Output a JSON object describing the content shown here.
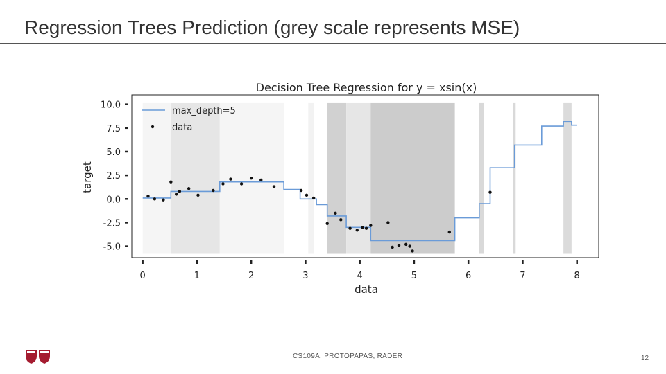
{
  "slide": {
    "title": "Regression Trees Prediction (grey scale represents MSE)",
    "footer_credit": "CS109A, PROTOPAPAS, RADER",
    "page_number": "12"
  },
  "chart_data": {
    "type": "line",
    "title": "Decision Tree Regression for y = xsin(x)",
    "xlabel": "data",
    "ylabel": "target",
    "xlim": [
      -0.2,
      8.4
    ],
    "ylim": [
      -6.2,
      11.0
    ],
    "xticks": [
      "0",
      "1",
      "2",
      "3",
      "4",
      "5",
      "6",
      "7",
      "8"
    ],
    "yticks": [
      "10.0",
      "7.5",
      "5.0",
      "2.5",
      "0.0",
      "-2.5",
      "-5.0"
    ],
    "legend": {
      "position": "top-left",
      "entries": [
        "max_depth=5",
        "data"
      ]
    },
    "colors": {
      "prediction": "#6a9bd8",
      "data": "#111111"
    },
    "mse_regions": [
      {
        "x0": 0.0,
        "x1": 0.52,
        "shade": 0.96
      },
      {
        "x0": 0.52,
        "x1": 1.42,
        "shade": 0.9
      },
      {
        "x0": 1.42,
        "x1": 2.6,
        "shade": 0.96
      },
      {
        "x0": 2.6,
        "x1": 3.05,
        "shade": 1.0
      },
      {
        "x0": 3.05,
        "x1": 3.15,
        "shade": 0.95
      },
      {
        "x0": 3.4,
        "x1": 3.75,
        "shade": 0.82
      },
      {
        "x0": 3.75,
        "x1": 4.2,
        "shade": 0.9
      },
      {
        "x0": 4.2,
        "x1": 5.75,
        "shade": 0.8
      },
      {
        "x0": 6.2,
        "x1": 6.28,
        "shade": 0.85
      },
      {
        "x0": 6.82,
        "x1": 6.87,
        "shade": 0.85
      },
      {
        "x0": 7.75,
        "x1": 7.9,
        "shade": 0.86
      }
    ],
    "series": [
      {
        "name": "max_depth=5",
        "type": "step",
        "x": [
          0,
          0.52,
          0.52,
          1.42,
          1.42,
          2.6,
          2.6,
          2.9,
          2.9,
          3.2,
          3.2,
          3.4,
          3.4,
          3.75,
          3.75,
          4.2,
          4.2,
          5.75,
          5.75,
          6.2,
          6.2,
          6.4,
          6.4,
          6.85,
          6.85,
          7.35,
          7.35,
          7.75,
          7.75,
          7.9,
          7.9,
          8.0
        ],
        "y": [
          0.1,
          0.1,
          0.8,
          0.8,
          1.8,
          1.8,
          1.0,
          1.0,
          0.0,
          0.0,
          -0.6,
          -0.6,
          -1.8,
          -1.8,
          -3.0,
          -3.0,
          -4.4,
          -4.4,
          -2.0,
          -2.0,
          -0.5,
          -0.5,
          3.3,
          3.3,
          5.7,
          5.7,
          7.7,
          7.7,
          8.2,
          8.2,
          7.8,
          7.8
        ]
      },
      {
        "name": "data",
        "type": "scatter",
        "x": [
          0.1,
          0.22,
          0.38,
          0.52,
          0.62,
          0.68,
          0.85,
          1.02,
          1.3,
          1.48,
          1.62,
          1.82,
          2.0,
          2.18,
          2.42,
          2.92,
          3.02,
          3.15,
          3.4,
          3.55,
          3.65,
          3.82,
          3.95,
          4.05,
          4.12,
          4.2,
          4.52,
          4.6,
          4.72,
          4.85,
          4.92,
          4.97,
          5.65,
          6.4
        ],
        "y": [
          0.3,
          0.0,
          -0.1,
          1.8,
          0.5,
          0.8,
          1.1,
          0.4,
          0.9,
          1.6,
          2.1,
          1.6,
          2.2,
          2.0,
          1.3,
          0.9,
          0.4,
          0.1,
          -2.6,
          -1.5,
          -2.2,
          -3.1,
          -3.3,
          -3.0,
          -3.1,
          -2.8,
          -2.5,
          -5.1,
          -4.9,
          -4.8,
          -5.0,
          -5.5,
          -3.5,
          0.7
        ]
      }
    ]
  }
}
